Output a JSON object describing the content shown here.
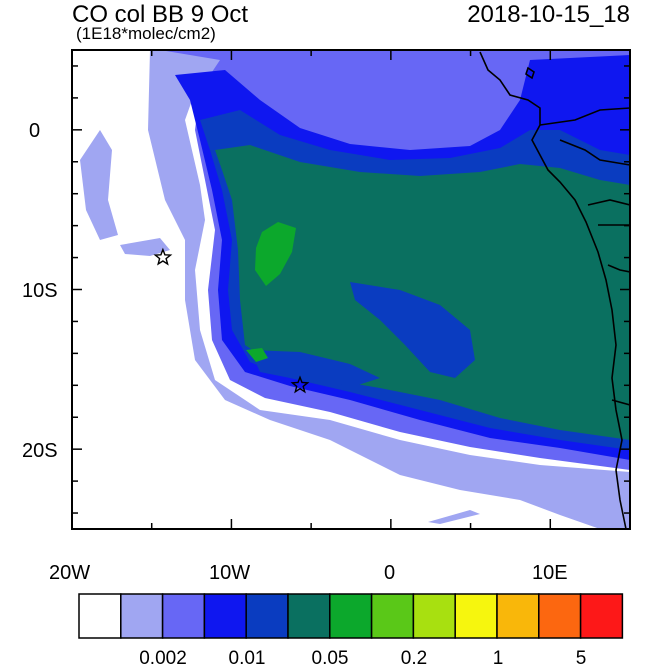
{
  "map": {
    "title_left": "CO col BB 9 Oct",
    "subtitle_left": "(1E18*molec/cm2)",
    "title_right": "2018-10-15_18",
    "lat_labels": [
      "0",
      "10S",
      "20S"
    ],
    "lon_labels": [
      "20W",
      "10W",
      "0",
      "10E"
    ],
    "markers": [
      {
        "name": "star-marker-8S",
        "lon": -14.3,
        "lat": -8.0
      },
      {
        "name": "star-marker-16S",
        "lon": -5.7,
        "lat": -16.0
      }
    ]
  },
  "colorbar": {
    "colors": [
      "#ffffff",
      "#a0a6f2",
      "#6767f5",
      "#0f17f0",
      "#0a3cc0",
      "#0a7060",
      "#0ca82c",
      "#5ac818",
      "#a8e010",
      "#f6f60e",
      "#f9b70a",
      "#fc6710",
      "#fd1818"
    ],
    "labels": [
      "0.002",
      "0.01",
      "0.05",
      "0.2",
      "1",
      "5"
    ]
  }
}
